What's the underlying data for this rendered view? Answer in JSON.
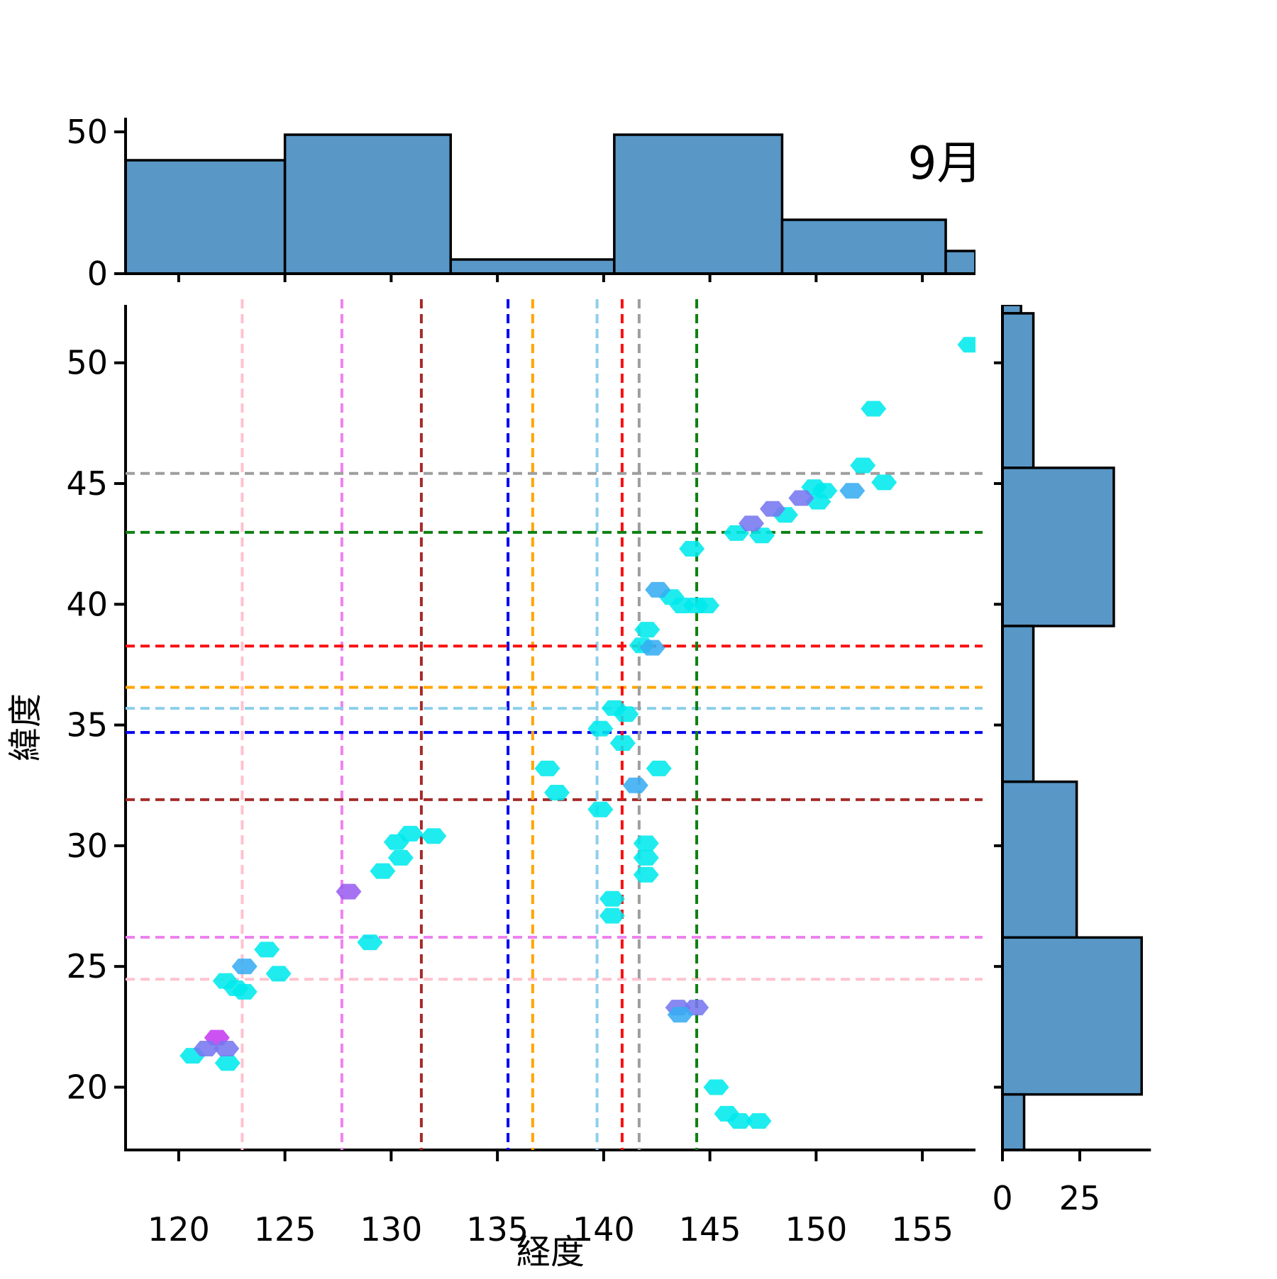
{
  "title": "9月",
  "chart_data": {
    "type": "scatter",
    "title": "9月",
    "xlabel": "経度",
    "ylabel": "緯度",
    "xlim": [
      117.5,
      157.5
    ],
    "ylim": [
      17.4,
      52.4
    ],
    "xticks": [
      120,
      125,
      130,
      135,
      140,
      145,
      150,
      155
    ],
    "yticks": [
      20,
      25,
      30,
      35,
      40,
      45,
      50
    ],
    "grid": false,
    "legend": "none",
    "marker": "hexagon",
    "point_colors": {
      "cyan": "#00E9ED",
      "skyblue": "#38ADF2",
      "slate": "#7678EF",
      "magenta": "#C63AF0",
      "purple": "#9B5FF0"
    },
    "points": {
      "cyan": [
        [
          120.65,
          21.3
        ],
        [
          122.3,
          21.0
        ],
        [
          122.2,
          24.4
        ],
        [
          122.7,
          24.1
        ],
        [
          123.1,
          23.95
        ],
        [
          124.15,
          25.7
        ],
        [
          124.7,
          24.7
        ],
        [
          129.0,
          26.0
        ],
        [
          129.6,
          28.95
        ],
        [
          130.45,
          29.5
        ],
        [
          130.25,
          30.15
        ],
        [
          130.9,
          30.5
        ],
        [
          132.0,
          30.4
        ],
        [
          137.35,
          33.2
        ],
        [
          137.8,
          32.2
        ],
        [
          139.85,
          31.5
        ],
        [
          142.0,
          30.1
        ],
        [
          142.0,
          29.5
        ],
        [
          142.0,
          28.8
        ],
        [
          140.4,
          27.8
        ],
        [
          140.4,
          27.1
        ],
        [
          142.6,
          33.2
        ],
        [
          140.9,
          34.25
        ],
        [
          139.85,
          34.85
        ],
        [
          140.5,
          35.7
        ],
        [
          141.05,
          35.45
        ],
        [
          141.8,
          38.3
        ],
        [
          142.05,
          38.95
        ],
        [
          143.2,
          40.3
        ],
        [
          143.7,
          39.95
        ],
        [
          144.35,
          39.95
        ],
        [
          144.85,
          39.95
        ],
        [
          144.15,
          42.3
        ],
        [
          146.25,
          42.95
        ],
        [
          147.45,
          42.85
        ],
        [
          148.55,
          43.7
        ],
        [
          149.9,
          44.85
        ],
        [
          150.4,
          44.7
        ],
        [
          150.1,
          44.25
        ],
        [
          153.2,
          45.05
        ],
        [
          152.2,
          45.75
        ],
        [
          152.7,
          48.1
        ],
        [
          157.25,
          50.75
        ],
        [
          145.3,
          20.0
        ],
        [
          145.8,
          18.9
        ],
        [
          146.4,
          18.6
        ],
        [
          147.3,
          18.6
        ]
      ],
      "magenta": [
        [
          121.8,
          22.05
        ]
      ],
      "slate": [
        [
          121.3,
          21.6
        ],
        [
          122.25,
          21.6
        ],
        [
          146.95,
          43.35
        ],
        [
          147.95,
          43.95
        ],
        [
          149.3,
          44.4
        ],
        [
          143.5,
          23.3
        ],
        [
          144.35,
          23.3
        ]
      ],
      "skyblue": [
        [
          123.1,
          25.0
        ],
        [
          141.5,
          32.5
        ],
        [
          142.3,
          38.2
        ],
        [
          142.55,
          40.6
        ],
        [
          151.7,
          44.7
        ],
        [
          143.6,
          23.0
        ]
      ],
      "purple": [
        [
          128.0,
          28.1
        ]
      ]
    },
    "reference_lines": [
      {
        "name": "pink",
        "color": "#FFC2CE",
        "lon": 122.99,
        "lat": 24.47
      },
      {
        "name": "violet",
        "color": "#EE82EE",
        "lon": 127.68,
        "lat": 26.21
      },
      {
        "name": "darkred",
        "color": "#A62A2A",
        "lon": 131.42,
        "lat": 31.91
      },
      {
        "name": "blue",
        "color": "#0000F5",
        "lon": 135.5,
        "lat": 34.69
      },
      {
        "name": "orange",
        "color": "#FFA500",
        "lon": 136.66,
        "lat": 36.56
      },
      {
        "name": "lightblue",
        "color": "#8CCFEB",
        "lon": 139.69,
        "lat": 35.69
      },
      {
        "name": "red",
        "color": "#FA0F0F",
        "lon": 140.87,
        "lat": 38.27
      },
      {
        "name": "gray",
        "color": "#9E9E9E",
        "lon": 141.67,
        "lat": 45.42
      },
      {
        "name": "green",
        "color": "#0E8011",
        "lon": 144.38,
        "lat": 42.98
      }
    ],
    "marginal_x": {
      "type": "bar",
      "axis_ticks": [
        0,
        50
      ],
      "value_max": 52,
      "bin_edges": [
        117.5,
        125.0,
        132.8,
        140.5,
        148.4,
        156.1,
        157.5
      ],
      "counts": [
        40,
        49,
        5,
        49,
        19,
        8
      ],
      "bar_color": "#5897C6",
      "bar_edge": "#000000"
    },
    "marginal_y": {
      "type": "bar",
      "axis_ticks": [
        0,
        25
      ],
      "value_max": 48,
      "bin_edges_lat": [
        52.4,
        52.05,
        45.65,
        39.1,
        32.65,
        26.2,
        19.7,
        17.4
      ],
      "counts": [
        6,
        10,
        36,
        10,
        24,
        45,
        7
      ],
      "bar_color": "#5897C6",
      "bar_edge": "#000000"
    }
  }
}
